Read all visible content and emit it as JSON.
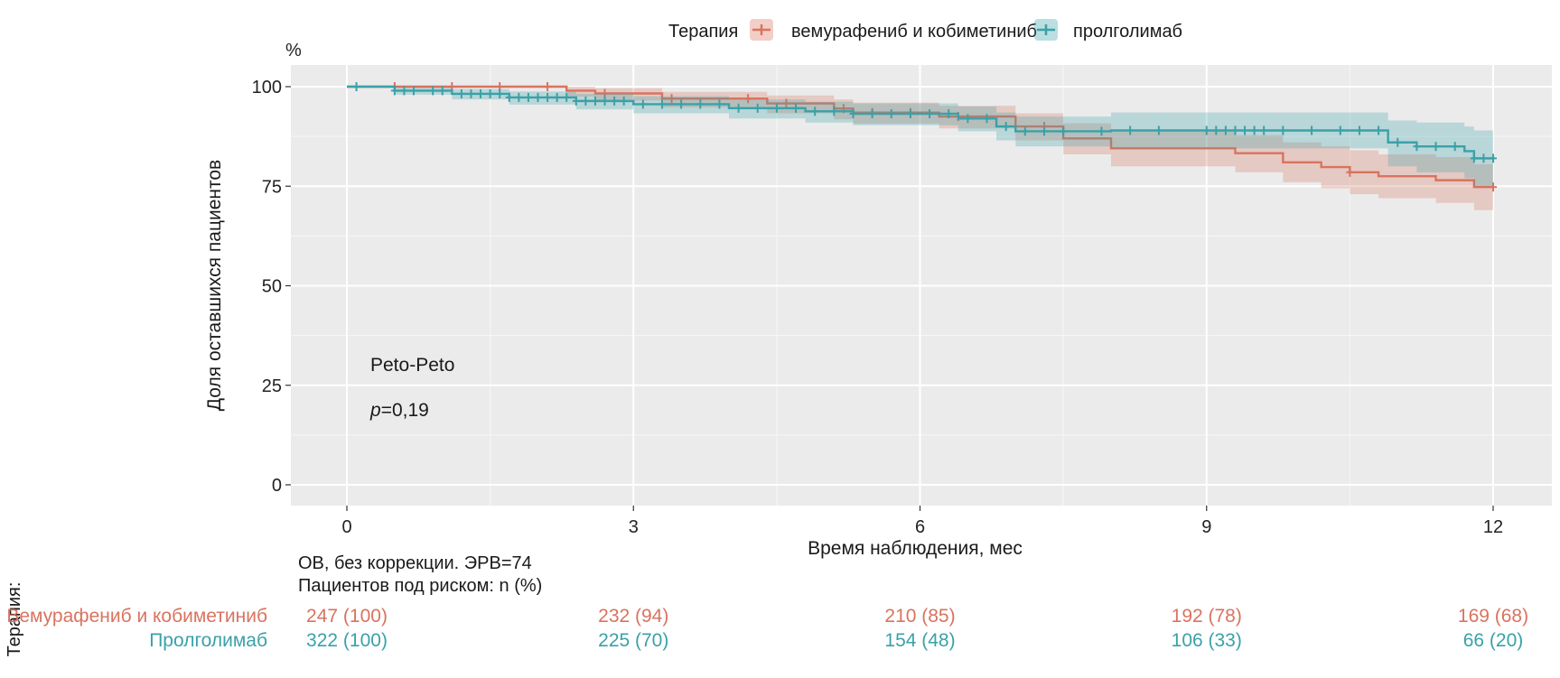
{
  "chart_data": {
    "type": "line",
    "subtype": "kaplan-meier",
    "legend": {
      "title": "Терапия",
      "placement": "top",
      "entries": [
        {
          "label": "вемурафениб и кобиметиниб",
          "color": "#d9735f"
        },
        {
          "label": "пролголимаб",
          "color": "#3aa1a8"
        }
      ]
    },
    "y_unit": "%",
    "ylabel": "Доля оставшихся пациентов",
    "xlabel": "Время наблюдения, мес",
    "xlim": [
      0,
      12
    ],
    "ylim": [
      0,
      100
    ],
    "x_ticks": [
      "0",
      "3",
      "6",
      "9",
      "12"
    ],
    "y_ticks": [
      "0",
      "25",
      "50",
      "75",
      "100"
    ],
    "grid": true,
    "series": [
      {
        "name": "вемурафениб и кобиметиниб",
        "color": "#d9735f",
        "steps": [
          [
            0,
            100
          ],
          [
            2.3,
            99
          ],
          [
            2.6,
            98.3
          ],
          [
            3.3,
            97
          ],
          [
            4.4,
            95.8
          ],
          [
            5.1,
            94.5
          ],
          [
            5.3,
            93.5
          ],
          [
            6.2,
            92.5
          ],
          [
            7.0,
            90
          ],
          [
            7.5,
            87
          ],
          [
            8.0,
            84.5
          ],
          [
            9.3,
            83.3
          ],
          [
            9.8,
            81
          ],
          [
            10.2,
            79.8
          ],
          [
            10.5,
            78.5
          ],
          [
            10.8,
            77.5
          ],
          [
            11.4,
            76.5
          ],
          [
            11.8,
            74.8
          ],
          [
            12.0,
            74.8
          ]
        ],
        "ci_lower": [
          [
            0,
            100
          ],
          [
            2.3,
            97.5
          ],
          [
            2.6,
            96.5
          ],
          [
            3.3,
            94.8
          ],
          [
            4.4,
            93.3
          ],
          [
            5.1,
            91.8
          ],
          [
            5.3,
            90.7
          ],
          [
            6.2,
            89.5
          ],
          [
            7.0,
            86.5
          ],
          [
            7.5,
            83
          ],
          [
            8.0,
            80
          ],
          [
            9.3,
            78.5
          ],
          [
            9.8,
            76
          ],
          [
            10.2,
            74.5
          ],
          [
            10.5,
            73
          ],
          [
            10.8,
            72
          ],
          [
            11.4,
            70.8
          ],
          [
            11.8,
            69
          ],
          [
            12.0,
            69
          ]
        ],
        "ci_upper": [
          [
            0,
            100
          ],
          [
            2.3,
            100
          ],
          [
            2.6,
            99.6
          ],
          [
            3.3,
            98.7
          ],
          [
            4.4,
            97.8
          ],
          [
            5.1,
            96.8
          ],
          [
            5.3,
            96
          ],
          [
            6.2,
            95.2
          ],
          [
            7.0,
            93.3
          ],
          [
            7.5,
            90.8
          ],
          [
            8.0,
            88.8
          ],
          [
            9.3,
            87.8
          ],
          [
            9.8,
            86
          ],
          [
            10.2,
            85
          ],
          [
            10.5,
            84
          ],
          [
            10.8,
            83
          ],
          [
            11.4,
            82.3
          ],
          [
            11.8,
            80.5
          ],
          [
            12.0,
            80.5
          ]
        ],
        "censored": [
          0.5,
          1.1,
          1.6,
          2.1,
          2.7,
          3.4,
          4.2,
          4.6,
          5.2,
          5.5,
          5.9,
          6.4,
          7.3,
          10.5,
          12.0
        ]
      },
      {
        "name": "пролголимаб",
        "color": "#3aa1a8",
        "steps": [
          [
            0,
            100
          ],
          [
            0.5,
            99
          ],
          [
            1.1,
            98.2
          ],
          [
            1.7,
            97.3
          ],
          [
            2.4,
            96.4
          ],
          [
            3.0,
            95.6
          ],
          [
            4.0,
            94.6
          ],
          [
            4.8,
            93.8
          ],
          [
            5.3,
            93.2
          ],
          [
            6.4,
            92
          ],
          [
            6.8,
            90
          ],
          [
            7.0,
            88.8
          ],
          [
            7.6,
            88.8
          ],
          [
            8.0,
            89
          ],
          [
            10.0,
            89
          ],
          [
            10.9,
            86
          ],
          [
            11.2,
            85
          ],
          [
            11.7,
            83.8
          ],
          [
            11.8,
            82
          ],
          [
            12.0,
            82
          ]
        ],
        "ci_lower": [
          [
            0,
            100
          ],
          [
            0.5,
            98
          ],
          [
            1.1,
            96.8
          ],
          [
            1.7,
            95.5
          ],
          [
            2.4,
            94.3
          ],
          [
            3.0,
            93.3
          ],
          [
            4.0,
            92
          ],
          [
            4.8,
            91
          ],
          [
            5.3,
            90.3
          ],
          [
            6.4,
            88.8
          ],
          [
            6.8,
            86.5
          ],
          [
            7.0,
            85
          ],
          [
            8.0,
            84.5
          ],
          [
            10.0,
            84.5
          ],
          [
            10.9,
            80
          ],
          [
            11.2,
            78.5
          ],
          [
            11.7,
            77
          ],
          [
            11.8,
            75
          ],
          [
            12.0,
            75
          ]
        ],
        "ci_upper": [
          [
            0,
            100
          ],
          [
            0.5,
            99.8
          ],
          [
            1.1,
            99.4
          ],
          [
            1.7,
            98.8
          ],
          [
            2.4,
            98.2
          ],
          [
            3.0,
            97.6
          ],
          [
            4.0,
            96.8
          ],
          [
            4.8,
            96.2
          ],
          [
            5.3,
            95.8
          ],
          [
            6.4,
            95
          ],
          [
            6.8,
            93.5
          ],
          [
            7.0,
            92.5
          ],
          [
            8.0,
            93.5
          ],
          [
            10.0,
            93.5
          ],
          [
            10.9,
            91.5
          ],
          [
            11.2,
            91
          ],
          [
            11.7,
            90
          ],
          [
            11.8,
            89
          ],
          [
            12.0,
            89
          ]
        ],
        "censored": [
          0.1,
          0.5,
          0.6,
          0.7,
          0.9,
          1.0,
          1.2,
          1.3,
          1.4,
          1.5,
          1.6,
          1.7,
          1.8,
          1.9,
          2.0,
          2.1,
          2.2,
          2.3,
          2.4,
          2.5,
          2.6,
          2.7,
          2.8,
          2.9,
          3.1,
          3.3,
          3.5,
          3.7,
          3.9,
          4.1,
          4.3,
          4.5,
          4.7,
          4.9,
          5.1,
          5.3,
          5.5,
          5.7,
          5.9,
          6.1,
          6.3,
          6.5,
          6.7,
          6.9,
          7.1,
          7.3,
          7.5,
          7.9,
          8.2,
          8.5,
          9.0,
          9.1,
          9.2,
          9.3,
          9.4,
          9.5,
          9.6,
          9.8,
          10.1,
          10.4,
          10.6,
          10.8,
          11.0,
          11.2,
          11.4,
          11.6,
          11.8,
          11.9,
          12.0
        ]
      }
    ],
    "annotations": {
      "test": "Peto-Peto",
      "p_label": "p",
      "p_value": "=0,19"
    }
  },
  "notes": {
    "line1": "ОВ, без коррекции. ЭРВ=74",
    "line2": "Пациентов под риском: n (%)"
  },
  "risk_table": {
    "group_label": "Терапия:",
    "rows": [
      {
        "name": "Вемурафениб и кобиметиниб",
        "color": "#d9735f",
        "values": [
          "247 (100)",
          "232 (94)",
          "210 (85)",
          "192 (78)",
          "169 (68)"
        ]
      },
      {
        "name": "Пролголимаб",
        "color": "#3aa1a8",
        "values": [
          "322 (100)",
          "225 (70)",
          "154 (48)",
          "106 (33)",
          "66 (20)"
        ]
      }
    ]
  }
}
